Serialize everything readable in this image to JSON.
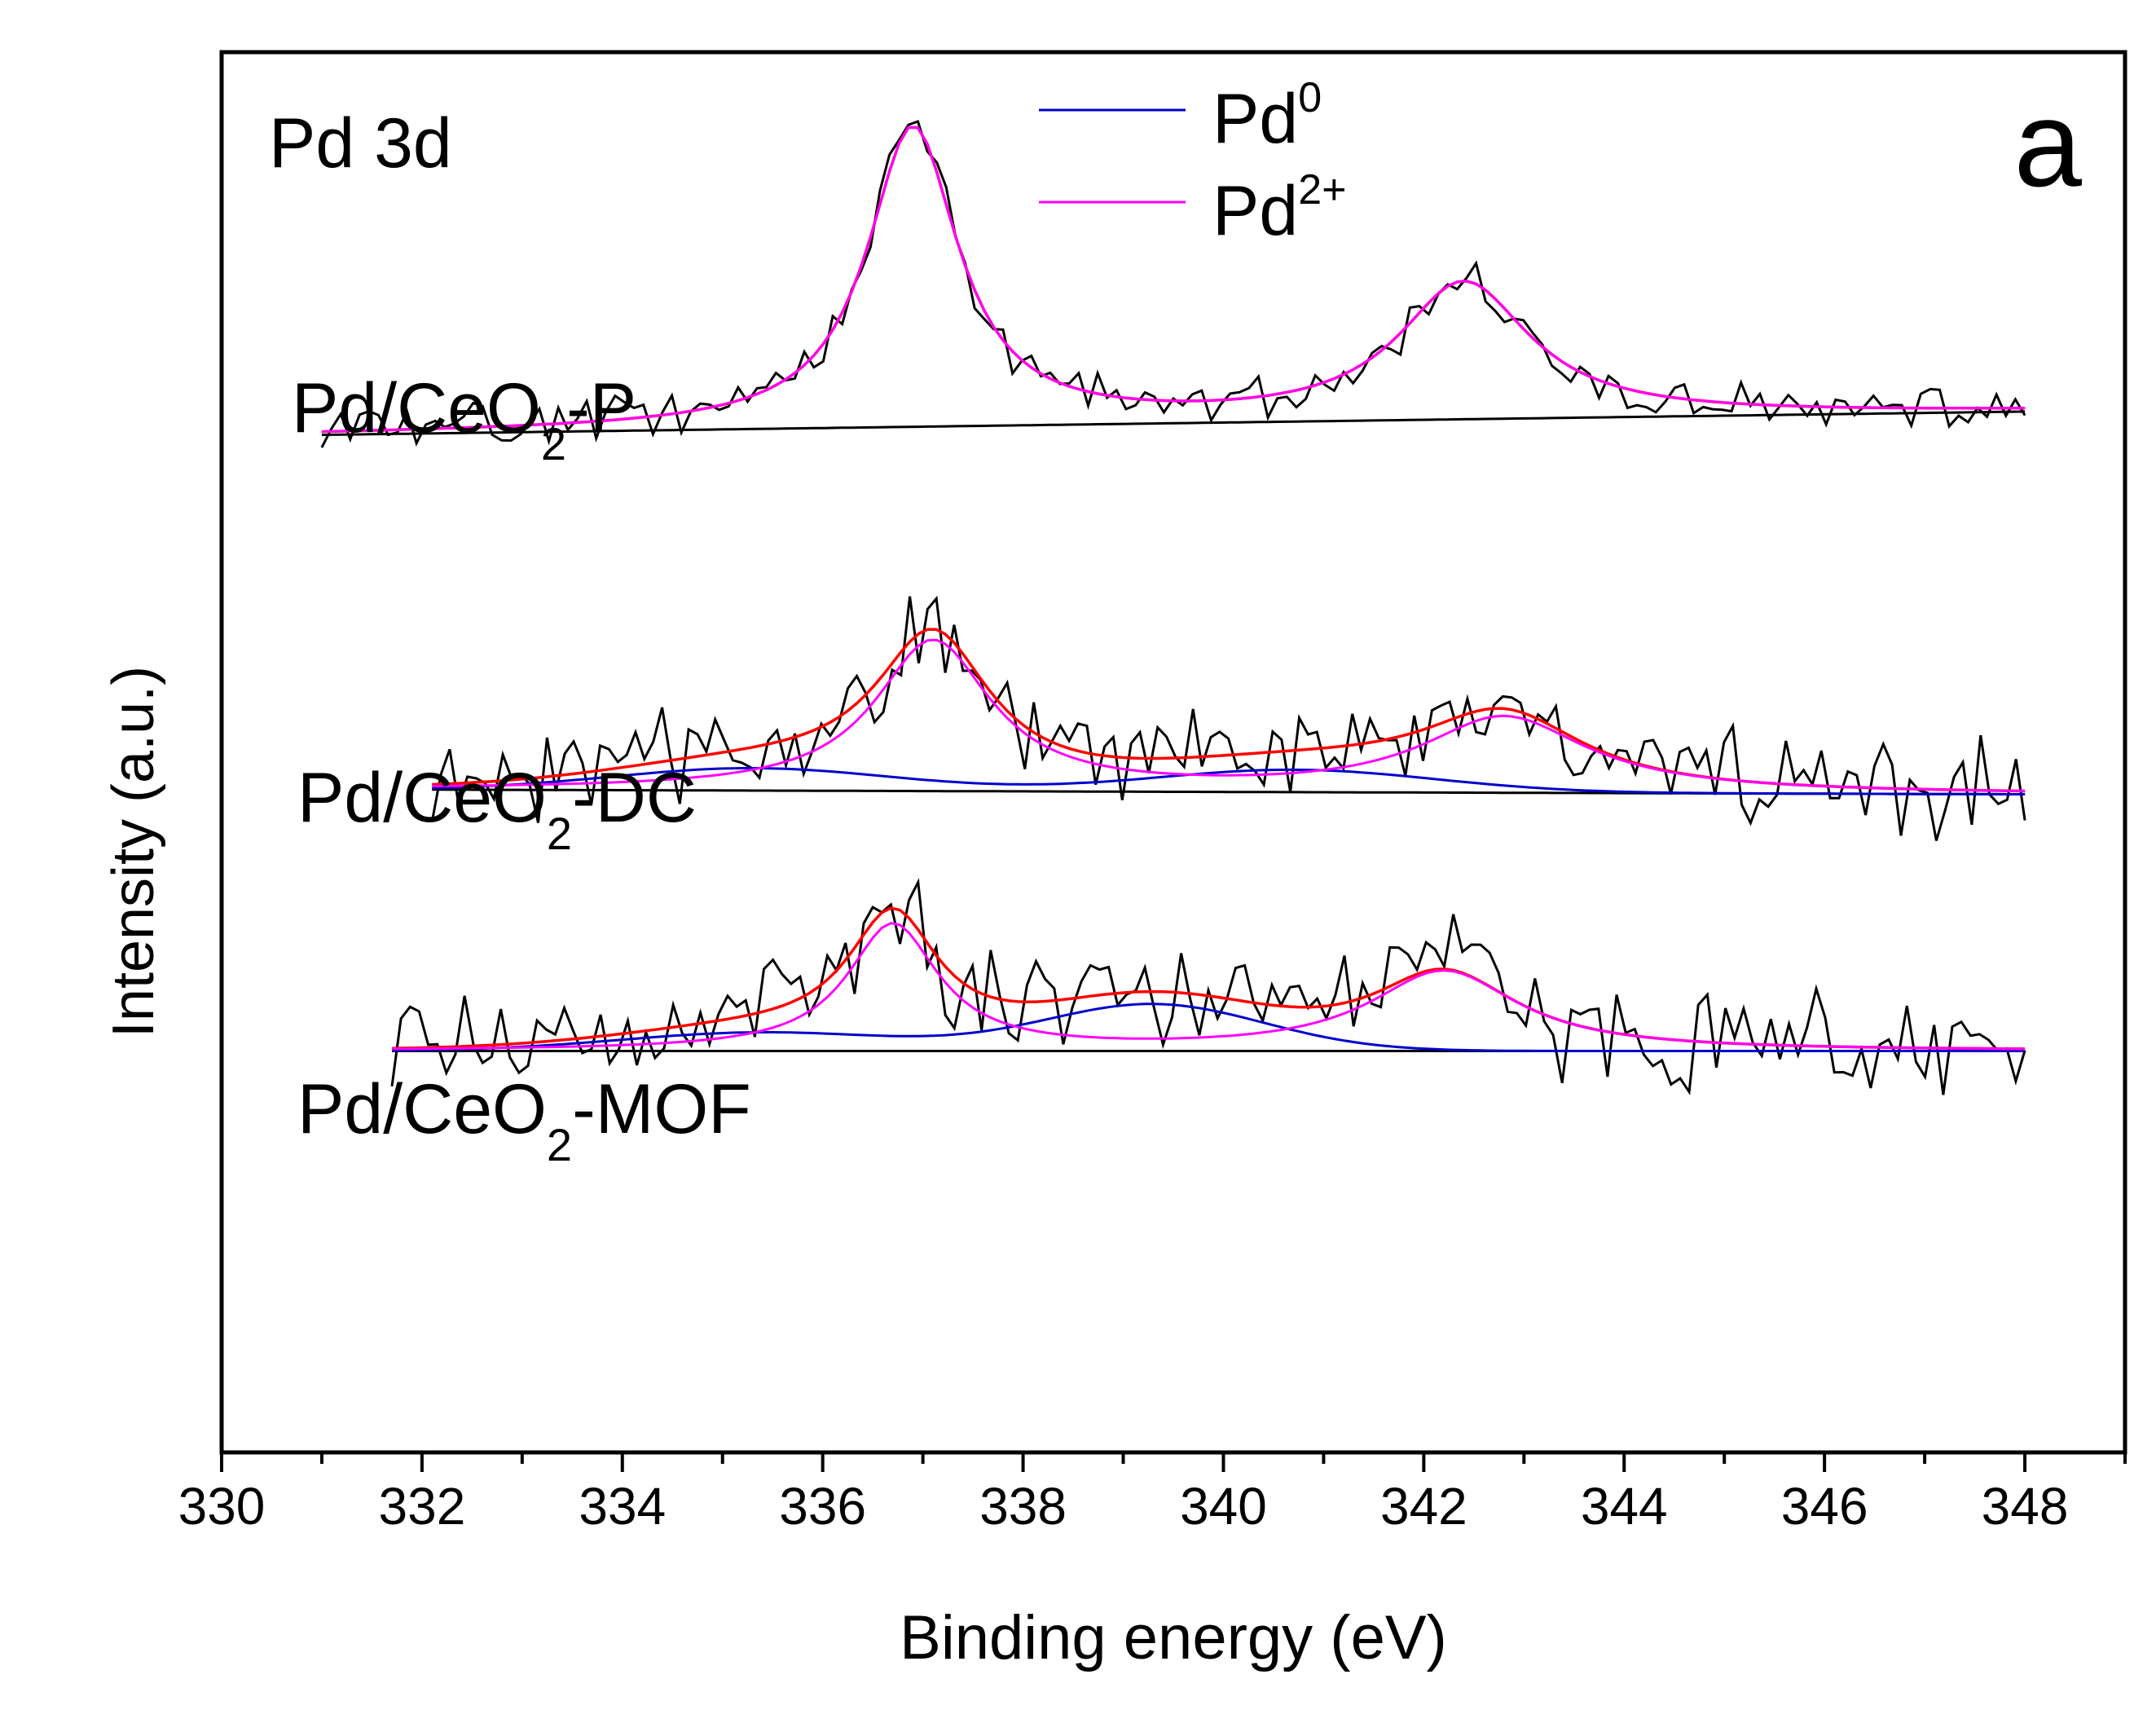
{
  "chart_data": {
    "type": "line",
    "title": "",
    "panel_label": "a",
    "region_label": "Pd 3d",
    "xlabel": "Binding energy (eV)",
    "ylabel": "Intensity (a.u.)",
    "xlim": [
      330,
      349
    ],
    "ylim": [
      -0.15,
      1.35
    ],
    "xticks": [
      330,
      332,
      334,
      336,
      338,
      340,
      342,
      344,
      346,
      348
    ],
    "xtick_labels": [
      "330",
      "332",
      "334",
      "336",
      "338",
      "340",
      "342",
      "344",
      "346",
      "348"
    ],
    "x_minor_tick_step": 1,
    "grid": false,
    "legend": {
      "position": "top-center",
      "entries": [
        {
          "name": "Pd",
          "sup": "0",
          "color": "#0000cc"
        },
        {
          "name": "Pd",
          "sup": "2+",
          "color": "#ff00ff"
        }
      ]
    },
    "colors": {
      "raw": "#000000",
      "envelope": "#ff0000",
      "pd0": "#0000cc",
      "pd2": "#ff00ff",
      "background": "#000000"
    },
    "samples": [
      {
        "name_main": "Pd/CeO",
        "name_sub": "2",
        "name_tail": "-P",
        "x_start": 331.0,
        "x_end": 348.0,
        "baseline": [
          0.94,
          0.965
        ],
        "pd2_peaks": [
          {
            "center": 336.9,
            "height": 0.32,
            "width": 0.55
          },
          {
            "center": 342.4,
            "height": 0.145,
            "width": 0.8
          }
        ],
        "pd0_peaks": [],
        "noise": 0.018,
        "seed": 11
      },
      {
        "name_main": "Pd/CeO",
        "name_sub": "2",
        "name_tail": "-DC",
        "x_start": 332.1,
        "x_end": 348.0,
        "baseline": [
          0.56,
          0.555
        ],
        "pd2_peaks": [
          {
            "center": 337.1,
            "height": 0.16,
            "width": 0.7
          },
          {
            "center": 342.8,
            "height": 0.08,
            "width": 1.0
          }
        ],
        "pd0_peaks": [
          {
            "center": 335.3,
            "height": 0.024,
            "width": 1.4
          },
          {
            "center": 340.7,
            "height": 0.024,
            "width": 1.4
          }
        ],
        "noise": 0.04,
        "seed": 23
      },
      {
        "name_main": "Pd/CeO",
        "name_sub": "2",
        "name_tail": "-MOF",
        "x_start": 331.7,
        "x_end": 348.0,
        "baseline": [
          0.28,
          0.28
        ],
        "pd2_peaks": [
          {
            "center": 336.7,
            "height": 0.135,
            "width": 0.55
          },
          {
            "center": 342.2,
            "height": 0.085,
            "width": 0.9
          }
        ],
        "pd0_peaks": [
          {
            "center": 335.4,
            "height": 0.02,
            "width": 1.4
          },
          {
            "center": 339.3,
            "height": 0.05,
            "width": 1.1
          }
        ],
        "noise": 0.045,
        "seed": 37
      }
    ]
  }
}
